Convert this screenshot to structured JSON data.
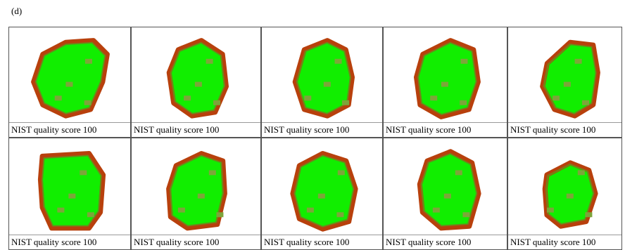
{
  "label": "(d)",
  "rows": [
    [
      "NIST quality score 100",
      "NIST quality score 100",
      "NIST quality score 100",
      "NIST quality score 100",
      "NIST quality score 100"
    ],
    [
      "NIST quality score 100",
      "NIST quality score 100",
      "NIST quality score 100",
      "NIST quality score 100",
      "NIST quality score 100"
    ]
  ]
}
